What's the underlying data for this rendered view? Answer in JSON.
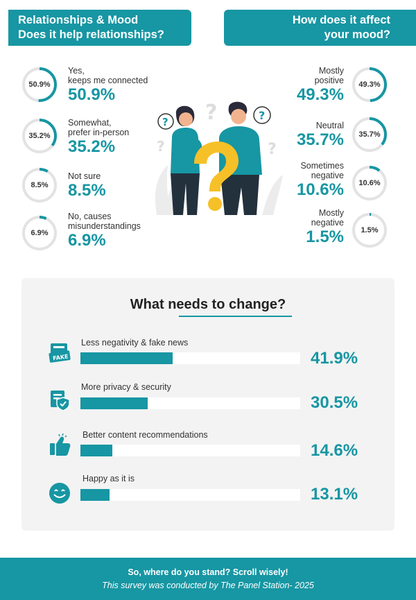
{
  "left_section": {
    "title_line1": "Relationships & Mood",
    "title_line2": "Does it help relationships?",
    "items": [
      {
        "ring_label": "50.9%",
        "text_line1": "Yes,",
        "text_line2": "keeps me connected",
        "big": "50.9%"
      },
      {
        "ring_label": "35.2%",
        "text_line1": "Somewhat,",
        "text_line2": "prefer in-person",
        "big": "35.2%"
      },
      {
        "ring_label": "8.5%",
        "text_line1": "Not sure",
        "text_line2": "",
        "big": "8.5%"
      },
      {
        "ring_label": "6.9%",
        "text_line1": "No, causes",
        "text_line2": "misunderstandings",
        "big": "6.9%"
      }
    ]
  },
  "right_section": {
    "title_line1": "How does it affect",
    "title_line2": "your mood?",
    "items": [
      {
        "ring_label": "49.3%",
        "text_line1": "Mostly",
        "text_line2": "positive",
        "big": "49.3%"
      },
      {
        "ring_label": "35.7%",
        "text_line1": "Neutral",
        "text_line2": "",
        "big": "35.7%"
      },
      {
        "ring_label": "10.6%",
        "text_line1": "Sometimes",
        "text_line2": "negative",
        "big": "10.6%"
      },
      {
        "ring_label": "1.5%",
        "text_line1": "Mostly",
        "text_line2": "negative",
        "big": "1.5%"
      }
    ]
  },
  "change_section": {
    "title": "What needs to change?",
    "fake_badge": "FAKE",
    "items": [
      {
        "label": "Less negativity & fake news",
        "value_text": "41.9%",
        "icon": "fake-news-icon"
      },
      {
        "label": "More privacy & security",
        "value_text": "30.5%",
        "icon": "privacy-shield-icon"
      },
      {
        "label": "Better content recommendations",
        "value_text": "14.6%",
        "icon": "thumbs-up-icon"
      },
      {
        "label": "Happy as it is",
        "value_text": "13.1%",
        "icon": "smiley-icon"
      }
    ]
  },
  "footer": {
    "line1": "So, where do you stand? Scroll wisely!",
    "line2": "This survey was conducted by The Panel Station- 2025"
  },
  "colors": {
    "accent": "#1796a3",
    "ring_track": "#e3e3e3",
    "panel_bg": "#f3f3f3",
    "bar_track": "#ffffff"
  },
  "chart_data": [
    {
      "type": "pie",
      "title": "Does it help relationships?",
      "categories": [
        "Yes, keeps me connected",
        "Somewhat, prefer in-person",
        "Not sure",
        "No, causes misunderstandings"
      ],
      "values": [
        50.9,
        35.2,
        8.5,
        6.9
      ]
    },
    {
      "type": "pie",
      "title": "How does it affect your mood?",
      "categories": [
        "Mostly positive",
        "Neutral",
        "Sometimes negative",
        "Mostly negative"
      ],
      "values": [
        49.3,
        35.7,
        10.6,
        1.5
      ]
    },
    {
      "type": "bar",
      "title": "What needs to change?",
      "categories": [
        "Less negativity & fake news",
        "More privacy & security",
        "Better content recommendations",
        "Happy as it is"
      ],
      "values": [
        41.9,
        30.5,
        14.6,
        13.1
      ],
      "ylim": [
        0,
        100
      ]
    }
  ]
}
